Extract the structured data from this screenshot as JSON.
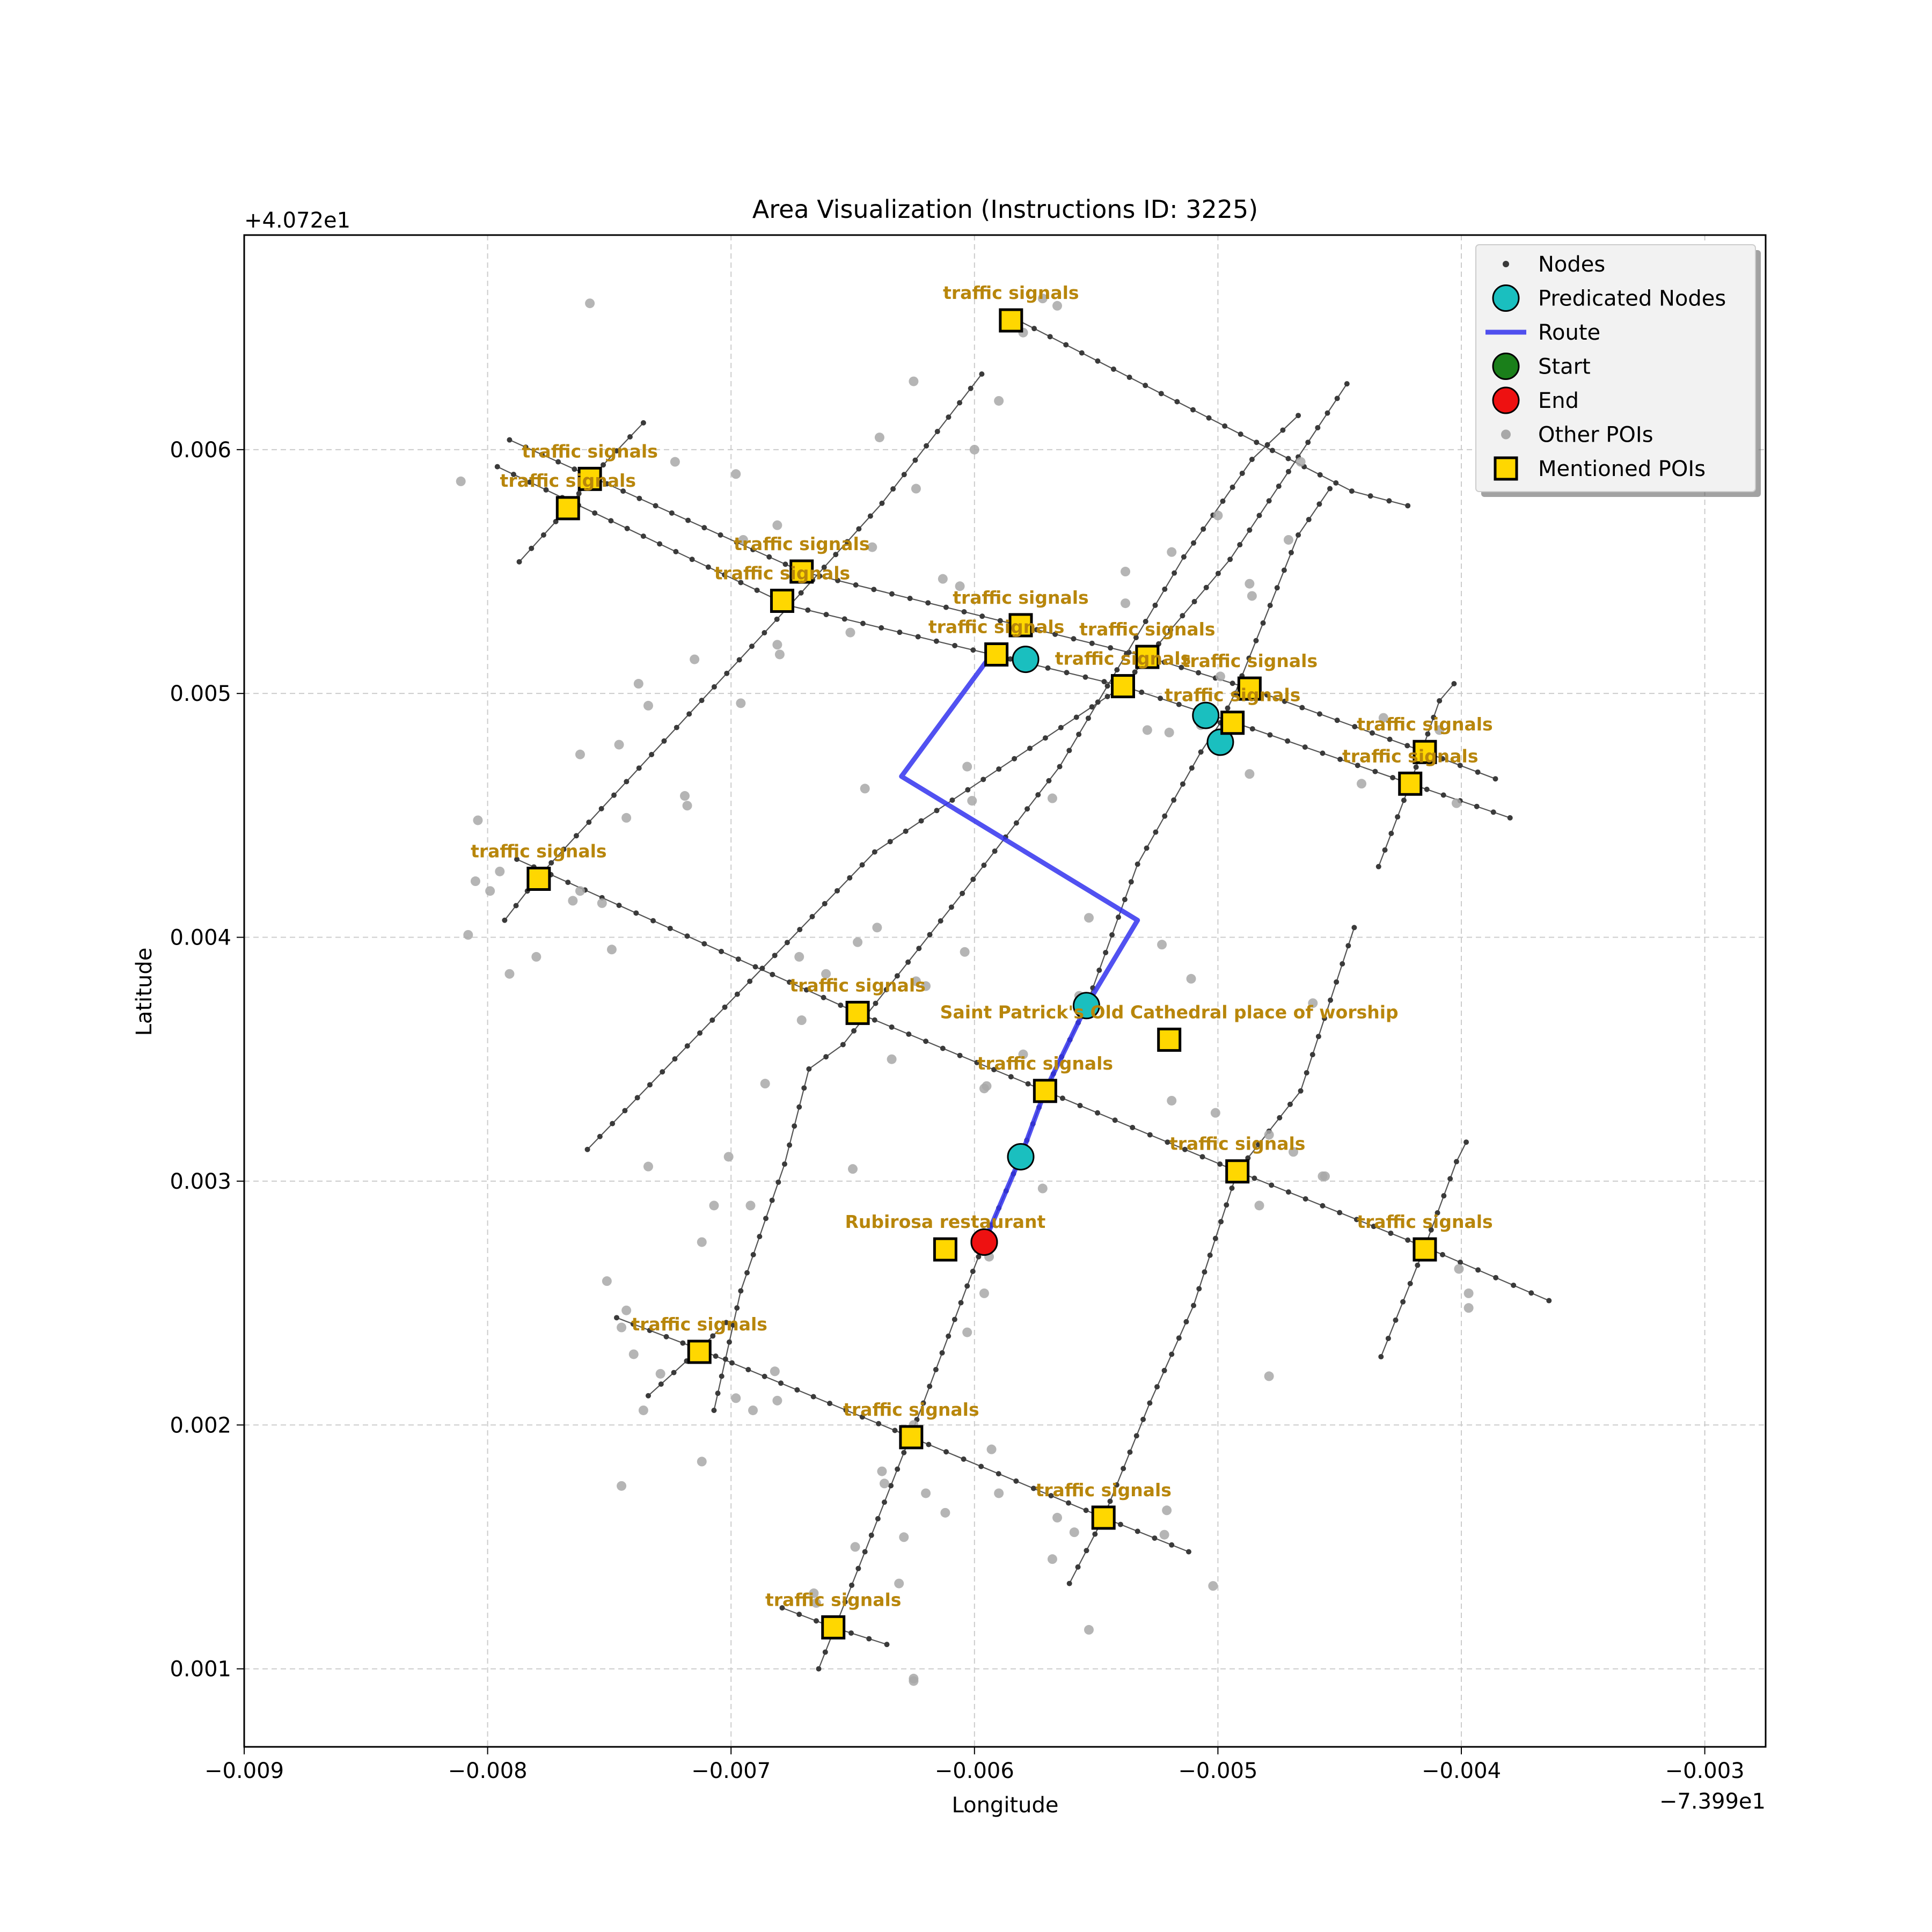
{
  "chart_data": {
    "type": "scatter",
    "title": "Area Visualization (Instructions ID: 3225)",
    "xlabel": "Longitude",
    "ylabel": "Latitude",
    "x_offset_label": "−7.399e1",
    "y_offset_label": "+4.072e1",
    "xlim": [
      -0.009,
      -0.00275
    ],
    "ylim": [
      0.00068,
      0.00688
    ],
    "x_ticks": [
      -0.009,
      -0.008,
      -0.007,
      -0.006,
      -0.005,
      -0.004,
      -0.003
    ],
    "x_tick_labels": [
      "−0.009",
      "−0.008",
      "−0.007",
      "−0.006",
      "−0.005",
      "−0.004",
      "−0.003"
    ],
    "y_ticks": [
      0.001,
      0.002,
      0.003,
      0.004,
      0.005,
      0.006
    ],
    "y_tick_labels": [
      "0.001",
      "0.002",
      "0.003",
      "0.004",
      "0.005",
      "0.006"
    ],
    "grid": true,
    "legend_position": "top-right",
    "legend": [
      {
        "key": "nodes",
        "label": "Nodes"
      },
      {
        "key": "predicated",
        "label": "Predicated Nodes"
      },
      {
        "key": "route",
        "label": "Route"
      },
      {
        "key": "start",
        "label": "Start"
      },
      {
        "key": "end",
        "label": "End"
      },
      {
        "key": "other",
        "label": "Other POIs"
      },
      {
        "key": "mentioned",
        "label": "Mentioned POIs"
      }
    ],
    "colors": {
      "node": "#3a3a3a",
      "edge": "#555555",
      "predicated": "#1abfbf",
      "route": "#3333ee",
      "start": "#1a7f1a",
      "end": "#ee1111",
      "other": "#a8a8a8",
      "mentioned": "#ffd700",
      "label": "#b8860b",
      "grid": "#cccccc"
    },
    "streets": [
      [
        [
          -0.00796,
          0.00593
        ],
        [
          -0.00676,
          0.00536
        ],
        [
          -0.00593,
          0.00516
        ],
        [
          -0.00539,
          0.00503
        ],
        [
          -0.00493,
          0.00488
        ],
        [
          -0.00421,
          0.00463
        ],
        [
          -0.0038,
          0.00449
        ]
      ],
      [
        [
          -0.00791,
          0.00604
        ],
        [
          -0.00671,
          0.0055
        ],
        [
          -0.00582,
          0.00528
        ],
        [
          -0.00529,
          0.00515
        ],
        [
          -0.00487,
          0.00502
        ],
        [
          -0.00415,
          0.00476
        ],
        [
          -0.00386,
          0.00465
        ]
      ],
      [
        [
          -0.00582,
          0.00653
        ],
        [
          -0.00445,
          0.00583
        ],
        [
          -0.00422,
          0.00577
        ]
      ],
      [
        [
          -0.00788,
          0.00432
        ],
        [
          -0.00648,
          0.00369
        ],
        [
          -0.00571,
          0.00337
        ],
        [
          -0.00492,
          0.00304
        ],
        [
          -0.00415,
          0.00273
        ],
        [
          -0.00364,
          0.00251
        ]
      ],
      [
        [
          -0.00747,
          0.00244
        ],
        [
          -0.00713,
          0.00231
        ],
        [
          -0.00626,
          0.00195
        ],
        [
          -0.00547,
          0.00162
        ],
        [
          -0.00512,
          0.00148
        ]
      ],
      [
        [
          -0.00679,
          0.00125
        ],
        [
          -0.00658,
          0.00117
        ],
        [
          -0.00636,
          0.0011
        ]
      ],
      [
        [
          -0.00793,
          0.00407
        ],
        [
          -0.00779,
          0.00425
        ],
        [
          -0.00676,
          0.00536
        ],
        [
          -0.00638,
          0.00578
        ],
        [
          -0.00597,
          0.00631
        ]
      ],
      [
        [
          -0.00759,
          0.00313
        ],
        [
          -0.00641,
          0.00435
        ],
        [
          -0.00539,
          0.00503
        ],
        [
          -0.00495,
          0.00555
        ],
        [
          -0.00447,
          0.00627
        ]
      ],
      [
        [
          -0.00707,
          0.00206
        ],
        [
          -0.00696,
          0.00255
        ],
        [
          -0.00678,
          0.00307
        ],
        [
          -0.00668,
          0.00346
        ],
        [
          -0.00654,
          0.00356
        ],
        [
          -0.00605,
          0.00418
        ],
        [
          -0.00565,
          0.0047
        ],
        [
          -0.00514,
          0.00556
        ],
        [
          -0.00486,
          0.00596
        ],
        [
          -0.00467,
          0.00614
        ]
      ],
      [
        [
          -0.00664,
          0.001
        ],
        [
          -0.00645,
          0.00148
        ],
        [
          -0.00621,
          0.00209
        ],
        [
          -0.00603,
          0.00257
        ],
        [
          -0.00596,
          0.00275
        ],
        [
          -0.00581,
          0.0031
        ],
        [
          -0.00571,
          0.00337
        ],
        [
          -0.00554,
          0.00372
        ],
        [
          -0.00533,
          0.0043
        ],
        [
          -0.00507,
          0.00476
        ],
        [
          -0.00499,
          0.00488
        ],
        [
          -0.00493,
          0.005
        ],
        [
          -0.00467,
          0.00565
        ],
        [
          -0.00454,
          0.00584
        ]
      ],
      [
        [
          -0.00561,
          0.00135
        ],
        [
          -0.00547,
          0.00162
        ],
        [
          -0.00528,
          0.00209
        ],
        [
          -0.0051,
          0.00249
        ],
        [
          -0.00492,
          0.00304
        ],
        [
          -0.00466,
          0.00337
        ],
        [
          -0.00444,
          0.00404
        ]
      ],
      [
        [
          -0.00734,
          0.00212
        ],
        [
          -0.00713,
          0.00231
        ],
        [
          -0.00702,
          0.00242
        ]
      ],
      [
        [
          -0.00433,
          0.00228
        ],
        [
          -0.00415,
          0.00273
        ],
        [
          -0.00402,
          0.00308
        ],
        [
          -0.00398,
          0.00316
        ]
      ],
      [
        [
          -0.00434,
          0.00429
        ],
        [
          -0.00421,
          0.00463
        ],
        [
          -0.00409,
          0.00497
        ],
        [
          -0.00403,
          0.00504
        ]
      ],
      [
        [
          -0.00787,
          0.00554
        ],
        [
          -0.00767,
          0.00576
        ],
        [
          -0.00758,
          0.00588
        ],
        [
          -0.00736,
          0.00611
        ]
      ]
    ],
    "route": [
      [
        -0.00596,
        0.00275
      ],
      [
        -0.00581,
        0.0031
      ],
      [
        -0.00571,
        0.00337
      ],
      [
        -0.00554,
        0.00372
      ],
      [
        -0.00533,
        0.00407
      ],
      [
        -0.0063,
        0.00466
      ],
      [
        -0.00593,
        0.00516
      ]
    ],
    "predicated_nodes": [
      [
        -0.00581,
        0.0031
      ],
      [
        -0.00554,
        0.00372
      ],
      [
        -0.00579,
        0.00514
      ],
      [
        -0.00505,
        0.00491
      ],
      [
        -0.00499,
        0.0048
      ]
    ],
    "start": [
      -0.00596,
      0.00275
    ],
    "end": [
      -0.00596,
      0.00275
    ],
    "other_pois": [
      [
        -0.00758,
        0.0066
      ],
      [
        -0.00811,
        0.00587
      ],
      [
        -0.00723,
        0.00595
      ],
      [
        -0.00639,
        0.00605
      ],
      [
        -0.00698,
        0.0059
      ],
      [
        -0.00624,
        0.00584
      ],
      [
        -0.006,
        0.006
      ],
      [
        -0.0059,
        0.0062
      ],
      [
        -0.00625,
        0.00628
      ],
      [
        -0.0058,
        0.00648
      ],
      [
        -0.00572,
        0.00662
      ],
      [
        -0.00566,
        0.00659
      ],
      [
        -0.00681,
        0.00569
      ],
      [
        -0.00695,
        0.00563
      ],
      [
        -0.00642,
        0.0056
      ],
      [
        -0.00651,
        0.00525
      ],
      [
        -0.00681,
        0.0052
      ],
      [
        -0.0068,
        0.00516
      ],
      [
        -0.00715,
        0.00514
      ],
      [
        -0.00738,
        0.00504
      ],
      [
        -0.00734,
        0.00495
      ],
      [
        -0.00696,
        0.00496
      ],
      [
        -0.00746,
        0.00479
      ],
      [
        -0.00762,
        0.00475
      ],
      [
        -0.00718,
        0.00454
      ],
      [
        -0.00719,
        0.00458
      ],
      [
        -0.00743,
        0.00449
      ],
      [
        -0.00804,
        0.00448
      ],
      [
        -0.00795,
        0.00427
      ],
      [
        -0.00799,
        0.00419
      ],
      [
        -0.00805,
        0.00423
      ],
      [
        -0.00808,
        0.00401
      ],
      [
        -0.00791,
        0.00385
      ],
      [
        -0.0078,
        0.00392
      ],
      [
        -0.00765,
        0.00415
      ],
      [
        -0.00762,
        0.00419
      ],
      [
        -0.00753,
        0.00414
      ],
      [
        -0.00749,
        0.00395
      ],
      [
        -0.00613,
        0.00547
      ],
      [
        -0.00606,
        0.00544
      ],
      [
        -0.00538,
        0.00537
      ],
      [
        -0.00519,
        0.00558
      ],
      [
        -0.005,
        0.00573
      ],
      [
        -0.00487,
        0.00545
      ],
      [
        -0.00486,
        0.0054
      ],
      [
        -0.00471,
        0.00563
      ],
      [
        -0.00466,
        0.00595
      ],
      [
        -0.00538,
        0.0055
      ],
      [
        -0.00529,
        0.00485
      ],
      [
        -0.0052,
        0.00484
      ],
      [
        -0.00487,
        0.00467
      ],
      [
        -0.00507,
        0.00487
      ],
      [
        -0.00603,
        0.0047
      ],
      [
        -0.00601,
        0.00456
      ],
      [
        -0.00568,
        0.00457
      ],
      [
        -0.00645,
        0.00461
      ],
      [
        -0.00553,
        0.00408
      ],
      [
        -0.0064,
        0.00404
      ],
      [
        -0.00648,
        0.00398
      ],
      [
        -0.00604,
        0.00394
      ],
      [
        -0.00523,
        0.00397
      ],
      [
        -0.00511,
        0.00383
      ],
      [
        -0.00557,
        0.00376
      ],
      [
        -0.00671,
        0.00366
      ],
      [
        -0.00661,
        0.00385
      ],
      [
        -0.00672,
        0.00392
      ],
      [
        -0.0062,
        0.0038
      ],
      [
        -0.00624,
        0.00382
      ],
      [
        -0.00634,
        0.0035
      ],
      [
        -0.00595,
        0.00339
      ],
      [
        -0.00596,
        0.00338
      ],
      [
        -0.0058,
        0.00352
      ],
      [
        -0.00519,
        0.00333
      ],
      [
        -0.00501,
        0.00328
      ],
      [
        -0.00479,
        0.00319
      ],
      [
        -0.00469,
        0.00312
      ],
      [
        -0.00457,
        0.00302
      ],
      [
        -0.00456,
        0.00302
      ],
      [
        -0.00461,
        0.00373
      ],
      [
        -0.00483,
        0.0029
      ],
      [
        -0.00686,
        0.0034
      ],
      [
        -0.00701,
        0.0031
      ],
      [
        -0.00734,
        0.00306
      ],
      [
        -0.00692,
        0.0029
      ],
      [
        -0.0065,
        0.00305
      ],
      [
        -0.00572,
        0.00297
      ],
      [
        -0.00598,
        0.00275
      ],
      [
        -0.00594,
        0.00269
      ],
      [
        -0.00596,
        0.00254
      ],
      [
        -0.00603,
        0.00238
      ],
      [
        -0.00712,
        0.00275
      ],
      [
        -0.00707,
        0.0029
      ],
      [
        -0.00751,
        0.00259
      ],
      [
        -0.00743,
        0.00247
      ],
      [
        -0.00745,
        0.0024
      ],
      [
        -0.0074,
        0.00229
      ],
      [
        -0.00729,
        0.00221
      ],
      [
        -0.00736,
        0.00206
      ],
      [
        -0.00682,
        0.00222
      ],
      [
        -0.00681,
        0.0021
      ],
      [
        -0.00698,
        0.00211
      ],
      [
        -0.00691,
        0.00206
      ],
      [
        -0.00625,
        0.002
      ],
      [
        -0.00593,
        0.0019
      ],
      [
        -0.00712,
        0.00185
      ],
      [
        -0.00745,
        0.00175
      ],
      [
        -0.00638,
        0.00181
      ],
      [
        -0.00637,
        0.00176
      ],
      [
        -0.0062,
        0.00172
      ],
      [
        -0.00612,
        0.00164
      ],
      [
        -0.0059,
        0.00172
      ],
      [
        -0.00566,
        0.00162
      ],
      [
        -0.00559,
        0.00156
      ],
      [
        -0.00568,
        0.00145
      ],
      [
        -0.00522,
        0.00155
      ],
      [
        -0.00521,
        0.00165
      ],
      [
        -0.00553,
        0.00116
      ],
      [
        -0.00629,
        0.00154
      ],
      [
        -0.00649,
        0.0015
      ],
      [
        -0.00666,
        0.00131
      ],
      [
        -0.00665,
        0.00127
      ],
      [
        -0.00631,
        0.00135
      ],
      [
        -0.00625,
        0.00096
      ],
      [
        -0.00625,
        0.00095
      ],
      [
        -0.00502,
        0.00134
      ],
      [
        -0.00479,
        0.0022
      ],
      [
        -0.00401,
        0.00264
      ],
      [
        -0.00397,
        0.00254
      ],
      [
        -0.00397,
        0.00248
      ],
      [
        -0.00402,
        0.00455
      ],
      [
        -0.00409,
        0.00485
      ],
      [
        -0.00432,
        0.0049
      ],
      [
        -0.00441,
        0.00463
      ],
      [
        -0.00499,
        0.00507
      ]
    ],
    "mentioned_pois": [
      {
        "label": "traffic signals",
        "lon": -0.00585,
        "lat": 0.00653
      },
      {
        "label": "traffic signals",
        "lon": -0.00758,
        "lat": 0.00588
      },
      {
        "label": "traffic signals",
        "lon": -0.00767,
        "lat": 0.00576
      },
      {
        "label": "traffic signals",
        "lon": -0.00671,
        "lat": 0.0055
      },
      {
        "label": "traffic signals",
        "lon": -0.00679,
        "lat": 0.00538
      },
      {
        "label": "traffic signals",
        "lon": -0.00581,
        "lat": 0.00528
      },
      {
        "label": "traffic signals",
        "lon": -0.00591,
        "lat": 0.00516
      },
      {
        "label": "traffic signals",
        "lon": -0.00529,
        "lat": 0.00515
      },
      {
        "label": "traffic signals",
        "lon": -0.00539,
        "lat": 0.00503
      },
      {
        "label": "traffic signals",
        "lon": -0.00487,
        "lat": 0.00502
      },
      {
        "label": "traffic signals",
        "lon": -0.00494,
        "lat": 0.00488
      },
      {
        "label": "traffic signals",
        "lon": -0.00415,
        "lat": 0.00476
      },
      {
        "label": "traffic signals",
        "lon": -0.00421,
        "lat": 0.00463
      },
      {
        "label": "traffic signals",
        "lon": -0.00779,
        "lat": 0.00424
      },
      {
        "label": "traffic signals",
        "lon": -0.00648,
        "lat": 0.00369
      },
      {
        "label": "Saint Patrick's Old Cathedral place of worship",
        "lon": -0.0052,
        "lat": 0.00358
      },
      {
        "label": "traffic signals",
        "lon": -0.00571,
        "lat": 0.00337
      },
      {
        "label": "traffic signals",
        "lon": -0.00492,
        "lat": 0.00304
      },
      {
        "label": "traffic signals",
        "lon": -0.00415,
        "lat": 0.00272
      },
      {
        "label": "Rubirosa restaurant",
        "lon": -0.00612,
        "lat": 0.00272
      },
      {
        "label": "traffic signals",
        "lon": -0.00713,
        "lat": 0.0023
      },
      {
        "label": "traffic signals",
        "lon": -0.00626,
        "lat": 0.00195
      },
      {
        "label": "traffic signals",
        "lon": -0.00547,
        "lat": 0.00162
      },
      {
        "label": "traffic signals",
        "lon": -0.00658,
        "lat": 0.00117
      }
    ]
  }
}
